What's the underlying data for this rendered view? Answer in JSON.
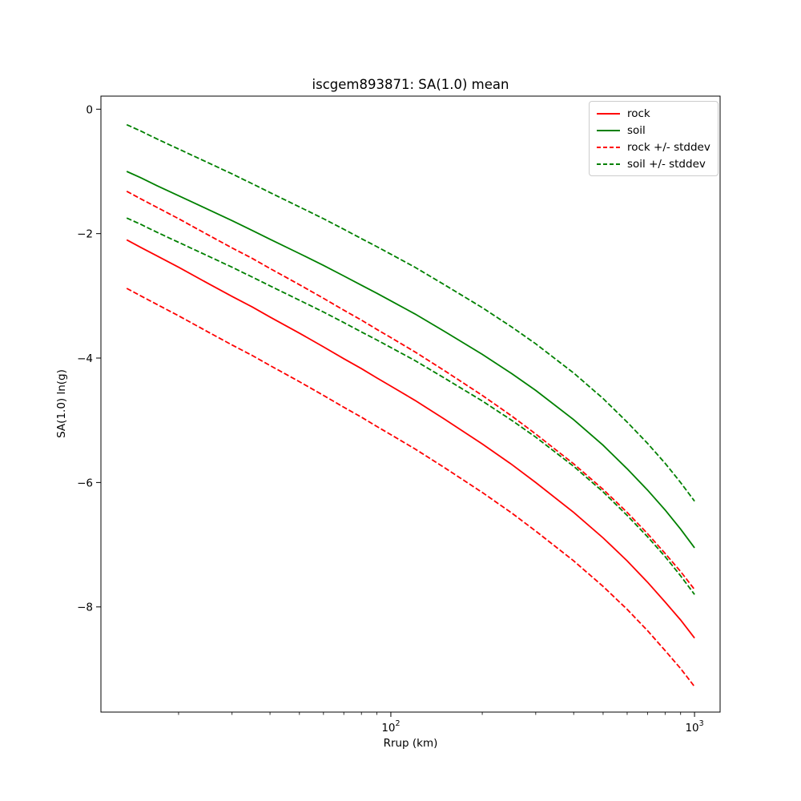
{
  "chart_data": {
    "type": "line",
    "title": "iscgem893871: SA(1.0) mean",
    "xlabel": "Rrup (km)",
    "ylabel": "SA(1.0) ln(g)",
    "xscale": "log",
    "yscale": "linear",
    "xlim": [
      11.1,
      1214
    ],
    "ylim": [
      -9.69,
      0.21
    ],
    "grid": false,
    "legend_position": "upper right",
    "x": [
      13.5,
      15,
      17,
      20,
      25,
      30,
      35,
      40,
      50,
      60,
      70,
      80,
      90,
      100,
      120,
      150,
      200,
      250,
      300,
      400,
      500,
      600,
      700,
      800,
      900,
      1000
    ],
    "series": [
      {
        "id": "rock",
        "name": "rock",
        "color": "#ff0000",
        "style": "solid",
        "values": [
          -2.1,
          -2.22,
          -2.36,
          -2.54,
          -2.8,
          -3.01,
          -3.18,
          -3.34,
          -3.6,
          -3.82,
          -4.01,
          -4.17,
          -4.32,
          -4.45,
          -4.68,
          -4.98,
          -5.38,
          -5.71,
          -6.0,
          -6.48,
          -6.89,
          -7.26,
          -7.6,
          -7.92,
          -8.21,
          -8.5
        ]
      },
      {
        "id": "soil",
        "name": "soil",
        "color": "#008000",
        "style": "solid",
        "values": [
          -1.0,
          -1.1,
          -1.23,
          -1.39,
          -1.61,
          -1.79,
          -1.95,
          -2.09,
          -2.32,
          -2.51,
          -2.68,
          -2.83,
          -2.96,
          -3.08,
          -3.29,
          -3.57,
          -3.94,
          -4.25,
          -4.52,
          -4.99,
          -5.4,
          -5.78,
          -6.12,
          -6.44,
          -6.75,
          -7.05
        ]
      },
      {
        "id": "rock-plus-stddev",
        "name": "rock + stddev",
        "color": "#ff0000",
        "style": "dashed",
        "values": [
          -1.32,
          -1.44,
          -1.58,
          -1.76,
          -2.02,
          -2.23,
          -2.4,
          -2.56,
          -2.82,
          -3.04,
          -3.23,
          -3.39,
          -3.54,
          -3.67,
          -3.9,
          -4.2,
          -4.6,
          -4.93,
          -5.22,
          -5.7,
          -6.11,
          -6.48,
          -6.82,
          -7.14,
          -7.43,
          -7.72
        ]
      },
      {
        "id": "rock-minus-stddev",
        "name": "rock - stddev",
        "color": "#ff0000",
        "style": "dashed",
        "values": [
          -2.88,
          -3.0,
          -3.14,
          -3.32,
          -3.58,
          -3.79,
          -3.96,
          -4.12,
          -4.38,
          -4.6,
          -4.79,
          -4.95,
          -5.1,
          -5.23,
          -5.46,
          -5.76,
          -6.16,
          -6.49,
          -6.78,
          -7.26,
          -7.67,
          -8.04,
          -8.38,
          -8.7,
          -8.99,
          -9.28
        ]
      },
      {
        "id": "soil-plus-stddev",
        "name": "soil + stddev",
        "color": "#008000",
        "style": "dashed",
        "values": [
          -0.25,
          -0.35,
          -0.48,
          -0.64,
          -0.86,
          -1.04,
          -1.2,
          -1.34,
          -1.57,
          -1.76,
          -1.93,
          -2.08,
          -2.21,
          -2.33,
          -2.54,
          -2.82,
          -3.19,
          -3.5,
          -3.77,
          -4.24,
          -4.65,
          -5.03,
          -5.37,
          -5.69,
          -6.0,
          -6.3
        ]
      },
      {
        "id": "soil-minus-stddev",
        "name": "soil - stddev",
        "color": "#008000",
        "style": "dashed",
        "values": [
          -1.75,
          -1.85,
          -1.98,
          -2.14,
          -2.36,
          -2.54,
          -2.7,
          -2.84,
          -3.07,
          -3.26,
          -3.43,
          -3.58,
          -3.71,
          -3.83,
          -4.04,
          -4.32,
          -4.69,
          -5.0,
          -5.27,
          -5.74,
          -6.15,
          -6.53,
          -6.87,
          -7.19,
          -7.5,
          -7.8
        ]
      }
    ],
    "y_ticks": [
      {
        "value": 0,
        "label": "0"
      },
      {
        "value": -2,
        "label": "−2"
      },
      {
        "value": -4,
        "label": "−4"
      },
      {
        "value": -6,
        "label": "−6"
      },
      {
        "value": -8,
        "label": "−8"
      }
    ],
    "x_major_ticks": [
      {
        "value": 100,
        "base": "10",
        "exp": "2"
      },
      {
        "value": 1000,
        "base": "10",
        "exp": "3"
      }
    ],
    "x_minor_ticks": [
      20,
      30,
      40,
      50,
      60,
      70,
      80,
      90,
      200,
      300,
      400,
      500,
      600,
      700,
      800,
      900
    ],
    "legend": {
      "entries": [
        {
          "label": "rock",
          "color": "#ff0000",
          "style": "solid"
        },
        {
          "label": "soil",
          "color": "#008000",
          "style": "solid"
        },
        {
          "label": "rock +/- stddev",
          "color": "#ff0000",
          "style": "dashed"
        },
        {
          "label": "soil +/- stddev",
          "color": "#008000",
          "style": "dashed"
        }
      ]
    },
    "colors": {
      "rock": "#ff0000",
      "soil": "#008000",
      "axes": "#000000",
      "background": "#ffffff",
      "legend_border": "#cccccc"
    }
  }
}
